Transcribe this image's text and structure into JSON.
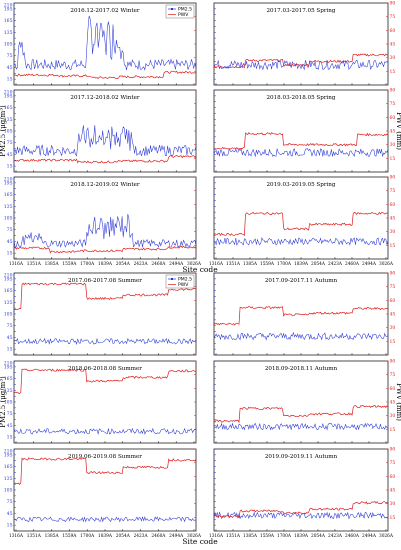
{
  "colors": {
    "pm25": "#2a36d6",
    "pwv": "#e01b1b",
    "axis": "#000000",
    "left_axis_text": "#2a36d6",
    "right_axis_text": "#e01b1b"
  },
  "chart_data": {
    "type": "line",
    "figures": [
      {
        "left_ylabel": "PM2.5 (μg/m³)",
        "right_ylabel": "PWV (mm)",
        "xlabel": "Site code",
        "left_ylim": [
          0,
          210
        ],
        "left_ticks": [
          0,
          15,
          30,
          45,
          60,
          75,
          90,
          105,
          120,
          135,
          150,
          165,
          180,
          195,
          210
        ],
        "left_tick_labels_shown": [
          15,
          45,
          75,
          105,
          135,
          165,
          195
        ],
        "left_top_label": 210,
        "right_ylim": [
          0,
          90
        ],
        "right_ticks": [
          0,
          15,
          30,
          45,
          60,
          75,
          90
        ]
      },
      {
        "left_ylabel": "PM2.5 (μg/m³)",
        "right_ylabel": "PWV (mm)",
        "xlabel": "Site code",
        "left_ylim": [
          0,
          210
        ],
        "left_ticks": [
          0,
          15,
          30,
          45,
          60,
          75,
          90,
          105,
          120,
          135,
          150,
          165,
          180,
          195,
          210
        ],
        "left_tick_labels_shown": [
          15,
          45,
          75,
          105,
          135,
          165,
          195
        ],
        "left_top_label": 210,
        "right_ylim": [
          0,
          90
        ],
        "right_ticks": [
          0,
          15,
          30,
          45,
          60,
          75,
          90
        ]
      }
    ],
    "x_tick_labels": [
      "1316A",
      "1351A",
      "1385A",
      "1559A",
      "1700A",
      "1839A",
      "2054A",
      "2423A",
      "2460A",
      "2494A",
      "3026A"
    ],
    "legend": [
      "PM2.5",
      "PWV"
    ],
    "panels": [
      {
        "title": "2016.12-2017.02 Winter",
        "pm_level": 52,
        "pm_var": 14,
        "pm_spikes": [
          [
            0.02,
            0.06,
            130
          ],
          [
            0.4,
            0.6,
            170
          ]
        ],
        "pwv_level": 11,
        "pwv_steps": [
          [
            0.0,
            0.25,
            11
          ],
          [
            0.25,
            0.42,
            10
          ],
          [
            0.42,
            0.58,
            8
          ],
          [
            0.58,
            0.82,
            9
          ],
          [
            0.82,
            1.0,
            14
          ]
        ],
        "has_legend": true
      },
      {
        "title": "2017.03-2017.05 Spring",
        "pm_level": 52,
        "pm_var": 12,
        "pm_spikes": [],
        "pwv_level": 20,
        "pwv_steps": [
          [
            0.0,
            0.18,
            20
          ],
          [
            0.18,
            0.4,
            27
          ],
          [
            0.4,
            0.55,
            22
          ],
          [
            0.55,
            0.8,
            26
          ],
          [
            0.8,
            1.0,
            33
          ]
        ],
        "has_legend": false
      },
      {
        "title": "2017.12-2018.02 Winter",
        "pm_level": 55,
        "pm_var": 14,
        "pm_spikes": [
          [
            0.35,
            0.65,
            110
          ]
        ],
        "pwv_level": 13,
        "pwv_steps": [
          [
            0.0,
            0.35,
            13
          ],
          [
            0.35,
            0.55,
            11
          ],
          [
            0.55,
            0.85,
            12
          ],
          [
            0.85,
            1.0,
            17
          ]
        ],
        "has_legend": false
      },
      {
        "title": "2018.03-2018.05 Spring",
        "pm_level": 50,
        "pm_var": 10,
        "pm_spikes": [],
        "pwv_level": 30,
        "pwv_steps": [
          [
            0.0,
            0.18,
            26
          ],
          [
            0.18,
            0.4,
            42
          ],
          [
            0.4,
            0.55,
            30
          ],
          [
            0.55,
            0.82,
            30
          ],
          [
            0.82,
            1.0,
            41
          ]
        ],
        "has_legend": false
      },
      {
        "title": "2018.12-2019.02 Winter",
        "pm_level": 40,
        "pm_var": 10,
        "pm_spikes": [
          [
            0.05,
            0.15,
            60
          ],
          [
            0.4,
            0.65,
            110
          ]
        ],
        "pwv_level": 10,
        "pwv_steps": [
          [
            0.0,
            0.2,
            12
          ],
          [
            0.2,
            0.35,
            8
          ],
          [
            0.35,
            0.6,
            9
          ],
          [
            0.6,
            0.85,
            11
          ],
          [
            0.85,
            1.0,
            13
          ]
        ],
        "has_legend": false
      },
      {
        "title": "2019.03-2019.05 Spring",
        "pm_level": 45,
        "pm_var": 9,
        "pm_spikes": [],
        "pwv_level": 30,
        "pwv_steps": [
          [
            0.0,
            0.18,
            27
          ],
          [
            0.18,
            0.4,
            50
          ],
          [
            0.4,
            0.55,
            33
          ],
          [
            0.55,
            0.8,
            38
          ],
          [
            0.8,
            1.0,
            50
          ]
        ],
        "has_legend": false
      },
      {
        "title": "2017.06-2017.08 Summer",
        "pm_level": 35,
        "pm_var": 7,
        "pm_spikes": [],
        "pwv_level": 70,
        "pwv_steps": [
          [
            0.0,
            0.04,
            50
          ],
          [
            0.04,
            0.4,
            78
          ],
          [
            0.4,
            0.6,
            62
          ],
          [
            0.6,
            0.85,
            66
          ],
          [
            0.85,
            1.0,
            72
          ]
        ],
        "has_legend": true
      },
      {
        "title": "2017.09-2017.11 Autumn",
        "pm_level": 48,
        "pm_var": 9,
        "pm_spikes": [],
        "pwv_level": 40,
        "pwv_steps": [
          [
            0.0,
            0.15,
            34
          ],
          [
            0.15,
            0.4,
            52
          ],
          [
            0.4,
            0.55,
            44
          ],
          [
            0.55,
            0.8,
            46
          ],
          [
            0.8,
            1.0,
            51
          ]
        ],
        "has_legend": false
      },
      {
        "title": "2018.06-2018.08 Summer",
        "pm_level": 30,
        "pm_var": 7,
        "pm_spikes": [],
        "pwv_level": 72,
        "pwv_steps": [
          [
            0.0,
            0.04,
            55
          ],
          [
            0.04,
            0.4,
            80
          ],
          [
            0.4,
            0.6,
            68
          ],
          [
            0.6,
            0.85,
            72
          ],
          [
            0.85,
            1.0,
            79
          ]
        ],
        "has_legend": false
      },
      {
        "title": "2018.09-2018.11 Autumn",
        "pm_level": 42,
        "pm_var": 8,
        "pm_spikes": [],
        "pwv_level": 33,
        "pwv_steps": [
          [
            0.0,
            0.15,
            24
          ],
          [
            0.15,
            0.4,
            38
          ],
          [
            0.4,
            0.55,
            30
          ],
          [
            0.55,
            0.8,
            32
          ],
          [
            0.8,
            1.0,
            40
          ]
        ],
        "has_legend": false
      },
      {
        "title": "2019.06-2019.08 Summer",
        "pm_level": 30,
        "pm_var": 6,
        "pm_spikes": [],
        "pwv_level": 70,
        "pwv_steps": [
          [
            0.0,
            0.04,
            52
          ],
          [
            0.04,
            0.4,
            79
          ],
          [
            0.4,
            0.6,
            64
          ],
          [
            0.6,
            0.85,
            70
          ],
          [
            0.85,
            1.0,
            78
          ]
        ],
        "has_legend": false
      },
      {
        "title": "2019.09-2019.11 Autumn",
        "pm_level": 40,
        "pm_var": 8,
        "pm_spikes": [],
        "pwv_level": 24,
        "pwv_steps": [
          [
            0.0,
            0.15,
            16
          ],
          [
            0.15,
            0.4,
            22
          ],
          [
            0.4,
            0.55,
            20
          ],
          [
            0.55,
            0.8,
            24
          ],
          [
            0.8,
            1.0,
            31
          ]
        ],
        "has_legend": false
      }
    ]
  }
}
